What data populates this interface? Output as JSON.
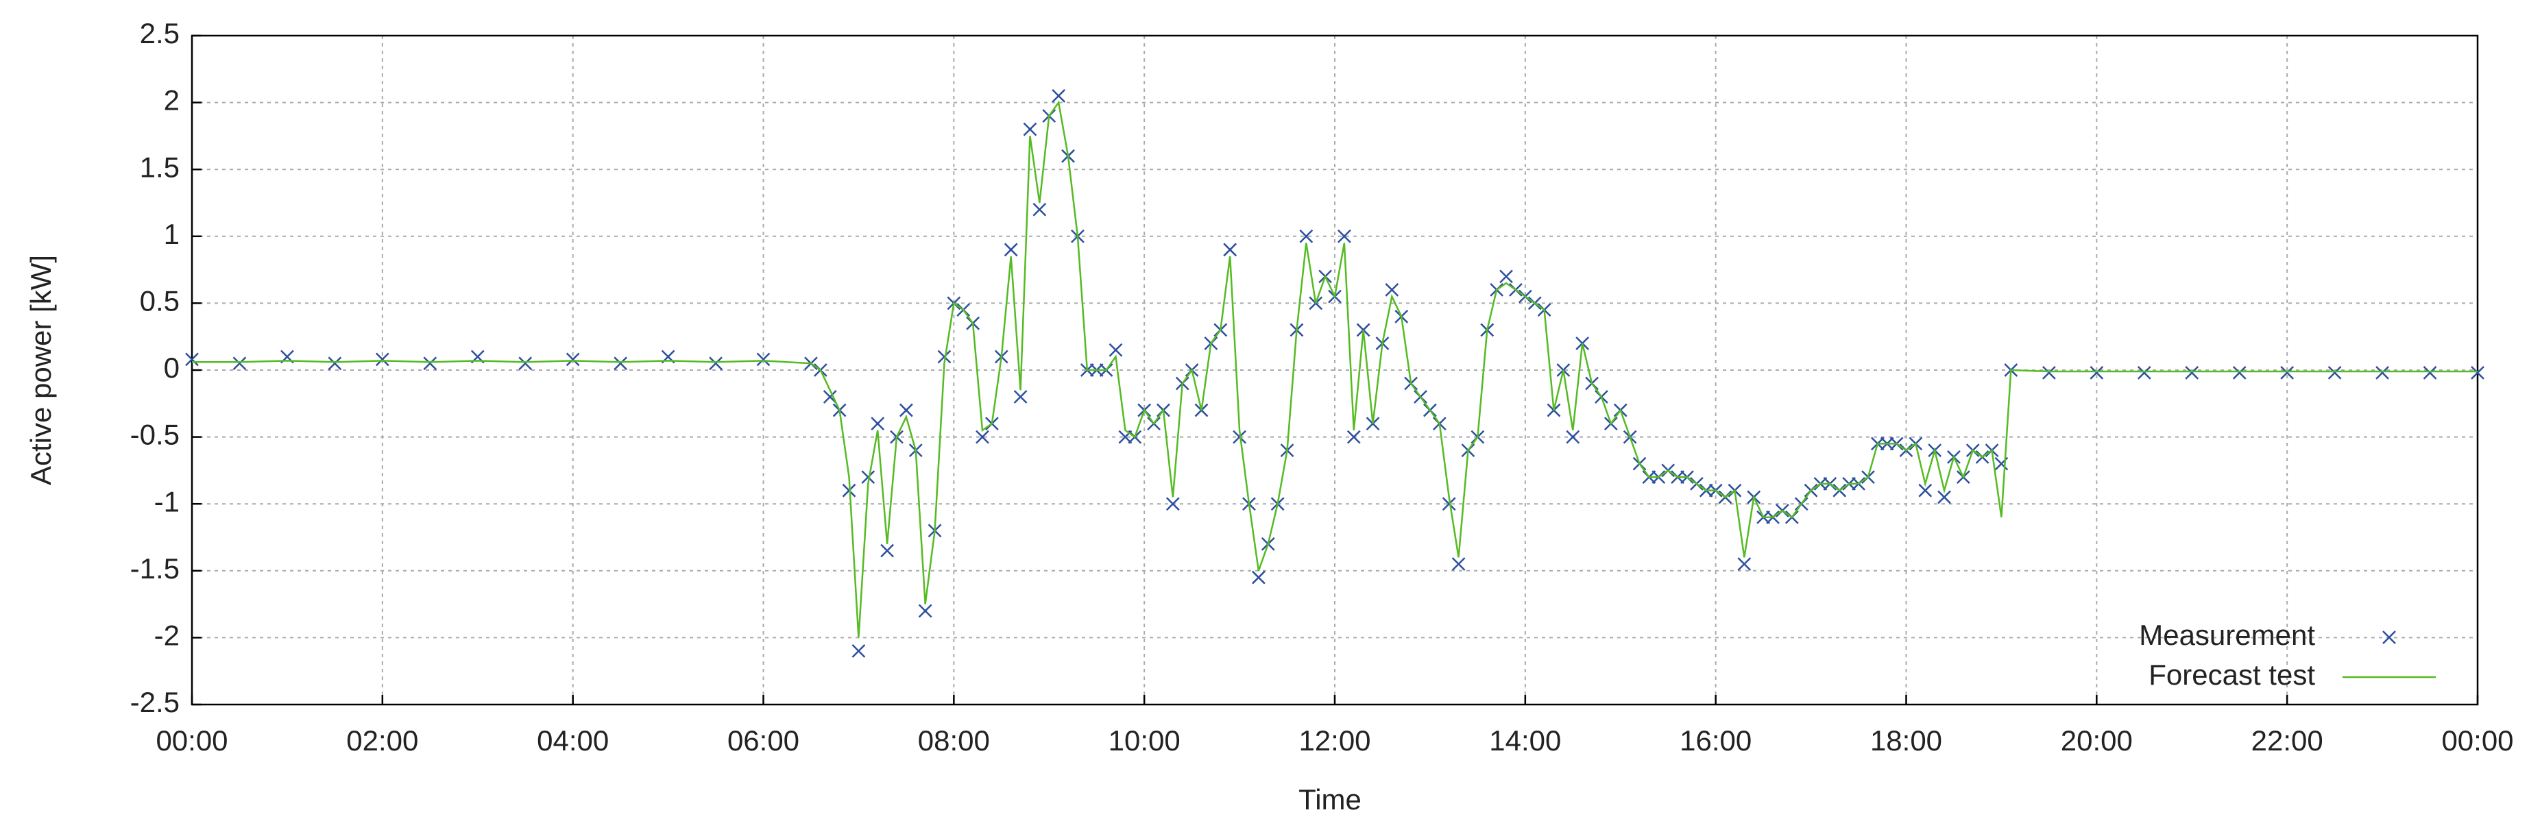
{
  "chart_data": {
    "type": "line",
    "x_label": "Time",
    "y_label": "Active power [kW]",
    "xlim": [
      0,
      24
    ],
    "ylim": [
      -2.5,
      2.5
    ],
    "xticks": [
      {
        "value": 0,
        "label": "00:00"
      },
      {
        "value": 2,
        "label": "02:00"
      },
      {
        "value": 4,
        "label": "04:00"
      },
      {
        "value": 6,
        "label": "06:00"
      },
      {
        "value": 8,
        "label": "08:00"
      },
      {
        "value": 10,
        "label": "10:00"
      },
      {
        "value": 12,
        "label": "12:00"
      },
      {
        "value": 14,
        "label": "14:00"
      },
      {
        "value": 16,
        "label": "16:00"
      },
      {
        "value": 18,
        "label": "18:00"
      },
      {
        "value": 20,
        "label": "20:00"
      },
      {
        "value": 22,
        "label": "22:00"
      },
      {
        "value": 24,
        "label": "00:00"
      }
    ],
    "yticks": [
      -2.5,
      -2,
      -1.5,
      -1,
      -0.5,
      0,
      0.5,
      1,
      1.5,
      2,
      2.5
    ],
    "grid": true,
    "legend_position": "lower right",
    "x": [
      0,
      0.5,
      1,
      1.5,
      2,
      2.5,
      3,
      3.5,
      4,
      4.5,
      5,
      5.5,
      6,
      6.5,
      6.6,
      6.7,
      6.8,
      6.9,
      7,
      7.1,
      7.2,
      7.3,
      7.4,
      7.5,
      7.6,
      7.7,
      7.8,
      7.9,
      8,
      8.1,
      8.2,
      8.3,
      8.4,
      8.5,
      8.6,
      8.7,
      8.8,
      8.9,
      9,
      9.1,
      9.2,
      9.3,
      9.4,
      9.5,
      9.6,
      9.7,
      9.8,
      9.9,
      10,
      10.1,
      10.2,
      10.3,
      10.4,
      10.5,
      10.6,
      10.7,
      10.8,
      10.9,
      11,
      11.1,
      11.2,
      11.3,
      11.4,
      11.5,
      11.6,
      11.7,
      11.8,
      11.9,
      12,
      12.1,
      12.2,
      12.3,
      12.4,
      12.5,
      12.6,
      12.7,
      12.8,
      12.9,
      13,
      13.1,
      13.2,
      13.3,
      13.4,
      13.5,
      13.6,
      13.7,
      13.8,
      13.9,
      14,
      14.1,
      14.2,
      14.3,
      14.4,
      14.5,
      14.6,
      14.7,
      14.8,
      14.9,
      15,
      15.1,
      15.2,
      15.3,
      15.4,
      15.5,
      15.6,
      15.7,
      15.8,
      15.9,
      16,
      16.1,
      16.2,
      16.3,
      16.4,
      16.5,
      16.6,
      16.7,
      16.8,
      16.9,
      17,
      17.1,
      17.2,
      17.3,
      17.4,
      17.5,
      17.6,
      17.7,
      17.8,
      17.9,
      18,
      18.1,
      18.2,
      18.3,
      18.4,
      18.5,
      18.6,
      18.7,
      18.8,
      18.9,
      19,
      19.1,
      19.5,
      20,
      20.5,
      21,
      21.5,
      22,
      22.5,
      23,
      23.5,
      24
    ],
    "series": [
      {
        "name": "Measurement",
        "color": "#2c4f9e",
        "mode": "markers",
        "values": [
          0.08,
          0.05,
          0.1,
          0.05,
          0.08,
          0.05,
          0.1,
          0.05,
          0.08,
          0.05,
          0.1,
          0.05,
          0.08,
          0.05,
          0,
          -0.2,
          -0.3,
          -0.9,
          -2.1,
          -0.8,
          -0.4,
          -1.35,
          -0.5,
          -0.3,
          -0.6,
          -1.8,
          -1.2,
          0.1,
          0.5,
          0.45,
          0.35,
          -0.5,
          -0.4,
          0.1,
          0.9,
          -0.2,
          1.8,
          1.2,
          1.9,
          2.05,
          1.6,
          1,
          0,
          0,
          0,
          0.15,
          -0.5,
          -0.5,
          -0.3,
          -0.4,
          -0.3,
          -1,
          -0.1,
          0,
          -0.3,
          0.2,
          0.3,
          0.9,
          -0.5,
          -1,
          -1.55,
          -1.3,
          -1,
          -0.6,
          0.3,
          1,
          0.5,
          0.7,
          0.55,
          1,
          -0.5,
          0.3,
          -0.4,
          0.2,
          0.6,
          0.4,
          -0.1,
          -0.2,
          -0.3,
          -0.4,
          -1,
          -1.45,
          -0.6,
          -0.5,
          0.3,
          0.6,
          0.7,
          0.6,
          0.55,
          0.5,
          0.45,
          -0.3,
          0,
          -0.5,
          0.2,
          -0.1,
          -0.2,
          -0.4,
          -0.3,
          -0.5,
          -0.7,
          -0.8,
          -0.8,
          -0.75,
          -0.8,
          -0.8,
          -0.85,
          -0.9,
          -0.9,
          -0.95,
          -0.9,
          -1.45,
          -0.95,
          -1.1,
          -1.1,
          -1.05,
          -1.1,
          -1,
          -0.9,
          -0.85,
          -0.85,
          -0.9,
          -0.85,
          -0.85,
          -0.8,
          -0.55,
          -0.55,
          -0.55,
          -0.6,
          -0.55,
          -0.9,
          -0.6,
          -0.95,
          -0.65,
          -0.8,
          -0.6,
          -0.65,
          -0.6,
          -0.7,
          0,
          -0.02,
          -0.02,
          -0.02,
          -0.02,
          -0.02,
          -0.02,
          -0.02,
          -0.02,
          -0.02,
          -0.02
        ]
      },
      {
        "name": "Forecast test",
        "color": "#55bb22",
        "mode": "line",
        "values": [
          0.06,
          0.06,
          0.07,
          0.06,
          0.07,
          0.06,
          0.07,
          0.06,
          0.07,
          0.06,
          0.07,
          0.06,
          0.07,
          0.05,
          0,
          -0.15,
          -0.3,
          -0.8,
          -2,
          -0.85,
          -0.45,
          -1.3,
          -0.5,
          -0.35,
          -0.6,
          -1.75,
          -1.2,
          0.05,
          0.5,
          0.45,
          0.35,
          -0.45,
          -0.4,
          0.1,
          0.85,
          -0.15,
          1.75,
          1.25,
          1.9,
          2,
          1.6,
          1,
          0,
          0,
          0,
          0.1,
          -0.45,
          -0.5,
          -0.3,
          -0.4,
          -0.3,
          -0.95,
          -0.1,
          0,
          -0.3,
          0.2,
          0.3,
          0.85,
          -0.45,
          -1,
          -1.5,
          -1.3,
          -1,
          -0.6,
          0.3,
          0.95,
          0.5,
          0.7,
          0.55,
          0.95,
          -0.45,
          0.3,
          -0.4,
          0.2,
          0.55,
          0.4,
          -0.1,
          -0.2,
          -0.3,
          -0.4,
          -0.95,
          -1.4,
          -0.6,
          -0.5,
          0.3,
          0.6,
          0.65,
          0.6,
          0.55,
          0.5,
          0.45,
          -0.3,
          0,
          -0.45,
          0.2,
          -0.1,
          -0.2,
          -0.4,
          -0.3,
          -0.5,
          -0.7,
          -0.8,
          -0.8,
          -0.75,
          -0.8,
          -0.8,
          -0.85,
          -0.9,
          -0.9,
          -0.95,
          -0.9,
          -1.4,
          -0.95,
          -1.1,
          -1.1,
          -1.05,
          -1.1,
          -1,
          -0.9,
          -0.85,
          -0.85,
          -0.9,
          -0.85,
          -0.85,
          -0.8,
          -0.55,
          -0.55,
          -0.55,
          -0.6,
          -0.55,
          -0.85,
          -0.6,
          -0.9,
          -0.65,
          -0.8,
          -0.6,
          -0.65,
          -0.6,
          -1.1,
          0,
          -0.01,
          -0.01,
          -0.01,
          -0.01,
          -0.01,
          -0.01,
          -0.01,
          -0.01,
          -0.01,
          -0.01
        ]
      }
    ]
  }
}
